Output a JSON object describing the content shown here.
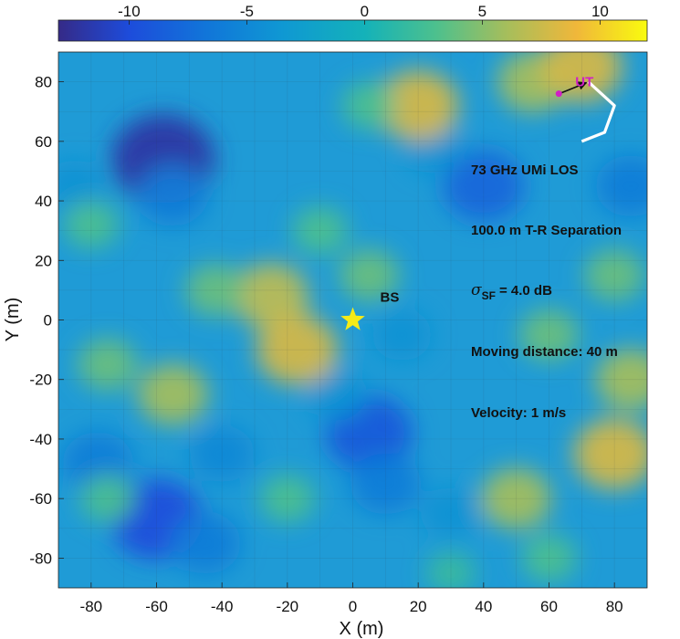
{
  "chart_data": {
    "type": "heatmap",
    "title": "",
    "xlabel": "X (m)",
    "ylabel": "Y (m)",
    "xlim": [
      -90,
      90
    ],
    "ylim": [
      -90,
      90
    ],
    "x_ticks": [
      -80,
      -60,
      -40,
      -20,
      0,
      20,
      40,
      60,
      80
    ],
    "y_ticks": [
      -80,
      -60,
      -40,
      -20,
      0,
      20,
      40,
      60,
      80
    ],
    "grid": true,
    "colormap": "parula",
    "colorbar": {
      "placement": "top",
      "range": [
        -13,
        12
      ],
      "ticks": [
        -10,
        -5,
        0,
        5,
        10
      ]
    },
    "shadow_fading_blobs": [
      {
        "x": -58,
        "y": 54,
        "value": -12
      },
      {
        "x": -55,
        "y": 42,
        "value": -6
      },
      {
        "x": -85,
        "y": 45,
        "value": -4
      },
      {
        "x": -60,
        "y": -67,
        "value": -10
      },
      {
        "x": -45,
        "y": -75,
        "value": -6
      },
      {
        "x": -78,
        "y": -48,
        "value": -6
      },
      {
        "x": -40,
        "y": -45,
        "value": -5
      },
      {
        "x": 5,
        "y": -38,
        "value": -9
      },
      {
        "x": 10,
        "y": -55,
        "value": -6
      },
      {
        "x": -5,
        "y": -25,
        "value": -4
      },
      {
        "x": 40,
        "y": 45,
        "value": -8
      },
      {
        "x": 25,
        "y": 58,
        "value": -4
      },
      {
        "x": 15,
        "y": -5,
        "value": -4
      },
      {
        "x": 85,
        "y": 45,
        "value": -6
      },
      {
        "x": 30,
        "y": -65,
        "value": -4
      },
      {
        "x": -25,
        "y": 8,
        "value": 7
      },
      {
        "x": -17,
        "y": -10,
        "value": 8
      },
      {
        "x": -42,
        "y": 10,
        "value": 4
      },
      {
        "x": -55,
        "y": -25,
        "value": 6
      },
      {
        "x": -75,
        "y": -15,
        "value": 4
      },
      {
        "x": -80,
        "y": 32,
        "value": 3
      },
      {
        "x": -75,
        "y": -60,
        "value": 3
      },
      {
        "x": -20,
        "y": -60,
        "value": 3
      },
      {
        "x": -10,
        "y": 30,
        "value": 3
      },
      {
        "x": 5,
        "y": 15,
        "value": 4
      },
      {
        "x": 20,
        "y": 72,
        "value": 8
      },
      {
        "x": 5,
        "y": 72,
        "value": 3
      },
      {
        "x": 55,
        "y": 80,
        "value": 6
      },
      {
        "x": 70,
        "y": 85,
        "value": 8
      },
      {
        "x": 80,
        "y": -45,
        "value": 8
      },
      {
        "x": 85,
        "y": -20,
        "value": 6
      },
      {
        "x": 50,
        "y": -60,
        "value": 6
      },
      {
        "x": 60,
        "y": -5,
        "value": 4
      },
      {
        "x": 80,
        "y": 15,
        "value": 4
      },
      {
        "x": 60,
        "y": -80,
        "value": 3
      },
      {
        "x": 30,
        "y": -85,
        "value": 2
      }
    ],
    "bs": {
      "x": 0,
      "y": 0,
      "label": "BS",
      "color": "#f5eb17",
      "marker": "star"
    },
    "ut": {
      "x": 63,
      "y": 76,
      "label": "UT",
      "color": "#d11fc5",
      "marker": "dot",
      "arrow_to": {
        "x": 72,
        "y": 80
      }
    },
    "ut_track": [
      {
        "x": 72,
        "y": 80
      },
      {
        "x": 80,
        "y": 72
      },
      {
        "x": 77,
        "y": 63
      },
      {
        "x": 70,
        "y": 60
      }
    ],
    "track_color": "#ffffff",
    "annotations": [
      "73 GHz UMi LOS",
      "100.0 m T-R Separation",
      "= 4.0 dB",
      "Moving distance: 40 m",
      "Velocity: 1 m/s"
    ],
    "sigma_symbol": "σ",
    "sigma_subscript": "SF"
  }
}
